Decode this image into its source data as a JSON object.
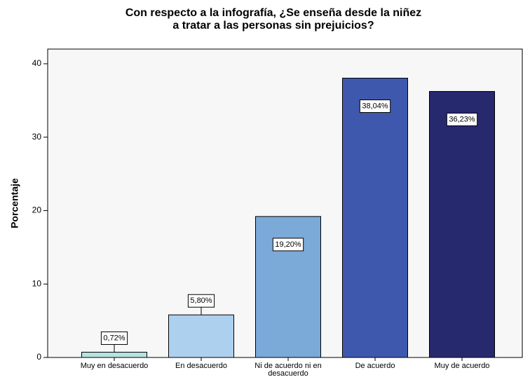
{
  "chart_data": {
    "type": "bar",
    "title": "Con respecto a la infografía, ¿Se enseña desde la niñez\na tratar a las personas sin prejuicios?",
    "y_label": "Porcentaje",
    "categories": [
      "Muy en desacuerdo",
      "En desacuerdo",
      "Ni de acuerdo ni en desacuerdo",
      "De acuerdo",
      "Muy de acuerdo"
    ],
    "values": [
      0.72,
      5.8,
      19.2,
      38.04,
      36.23
    ],
    "value_labels": [
      "0,72%",
      "5,80%",
      "19,20%",
      "38,04%",
      "36,23%"
    ],
    "colors": [
      "#b5e3e1",
      "#aed0ef",
      "#7ba9d8",
      "#3e58ad",
      "#27296e"
    ],
    "ylim": [
      0,
      42
    ],
    "yticks": [
      0,
      10,
      20,
      30,
      40
    ],
    "grid": false
  }
}
